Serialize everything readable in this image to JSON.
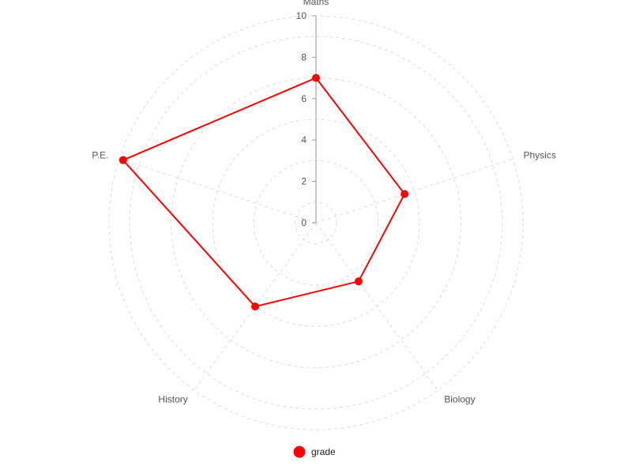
{
  "chart_data": {
    "type": "radar",
    "categories": [
      "Maths",
      "Physics",
      "Biology",
      "History",
      "P.E."
    ],
    "series": [
      {
        "name": "grade",
        "values": [
          7,
          4.5,
          3.5,
          5,
          9.8
        ],
        "color": "#ff0000"
      }
    ],
    "rlim": [
      0,
      10
    ],
    "rticks": [
      0,
      2,
      4,
      6,
      8,
      10
    ],
    "grid": true,
    "legend_position": "bottom"
  }
}
